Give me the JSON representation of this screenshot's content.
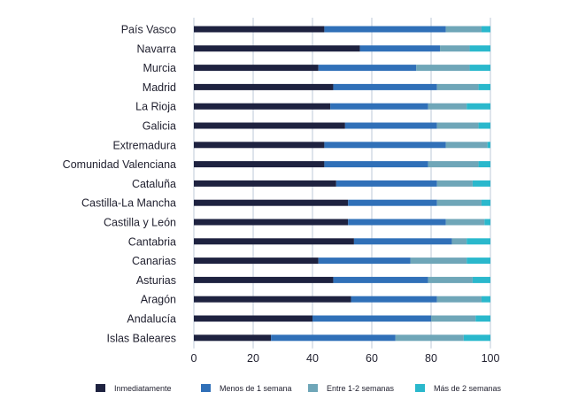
{
  "chart_data": {
    "type": "bar",
    "orientation": "horizontal",
    "stacked": true,
    "categories": [
      "País Vasco",
      "Navarra",
      "Murcia",
      "Madrid",
      "La Rioja",
      "Galicia",
      "Extremadura",
      "Comunidad Valenciana",
      "Cataluña",
      "Castilla-La Mancha",
      "Castilla y León",
      "Cantabria",
      "Canarias",
      "Asturias",
      "Aragón",
      "Andalucía",
      "Islas Baleares"
    ],
    "series": [
      {
        "name": "Inmediatamente",
        "color": "#1e2240",
        "values": [
          44,
          56,
          42,
          47,
          46,
          51,
          44,
          44,
          48,
          52,
          52,
          54,
          42,
          47,
          53,
          40,
          26
        ]
      },
      {
        "name": "Menos de 1 semana",
        "color": "#3070b8",
        "values": [
          41,
          27,
          33,
          35,
          33,
          31,
          41,
          35,
          34,
          30,
          33,
          33,
          31,
          32,
          29,
          40,
          42
        ]
      },
      {
        "name": "Entre 1-2 semanas",
        "color": "#6fa6b8",
        "values": [
          12,
          10,
          18,
          14,
          13,
          14,
          14,
          17,
          12,
          15,
          13,
          5,
          19,
          15,
          15,
          15,
          23
        ]
      },
      {
        "name": "Más de 2 semanas",
        "color": "#2ab8cc",
        "values": [
          3,
          7,
          7,
          4,
          8,
          4,
          1,
          4,
          6,
          3,
          2,
          8,
          8,
          6,
          3,
          5,
          9
        ]
      }
    ],
    "xlim": [
      0,
      100
    ],
    "xticks": [
      "0",
      "20",
      "40",
      "60",
      "80",
      "100"
    ],
    "grid": true,
    "legend_position": "bottom"
  }
}
